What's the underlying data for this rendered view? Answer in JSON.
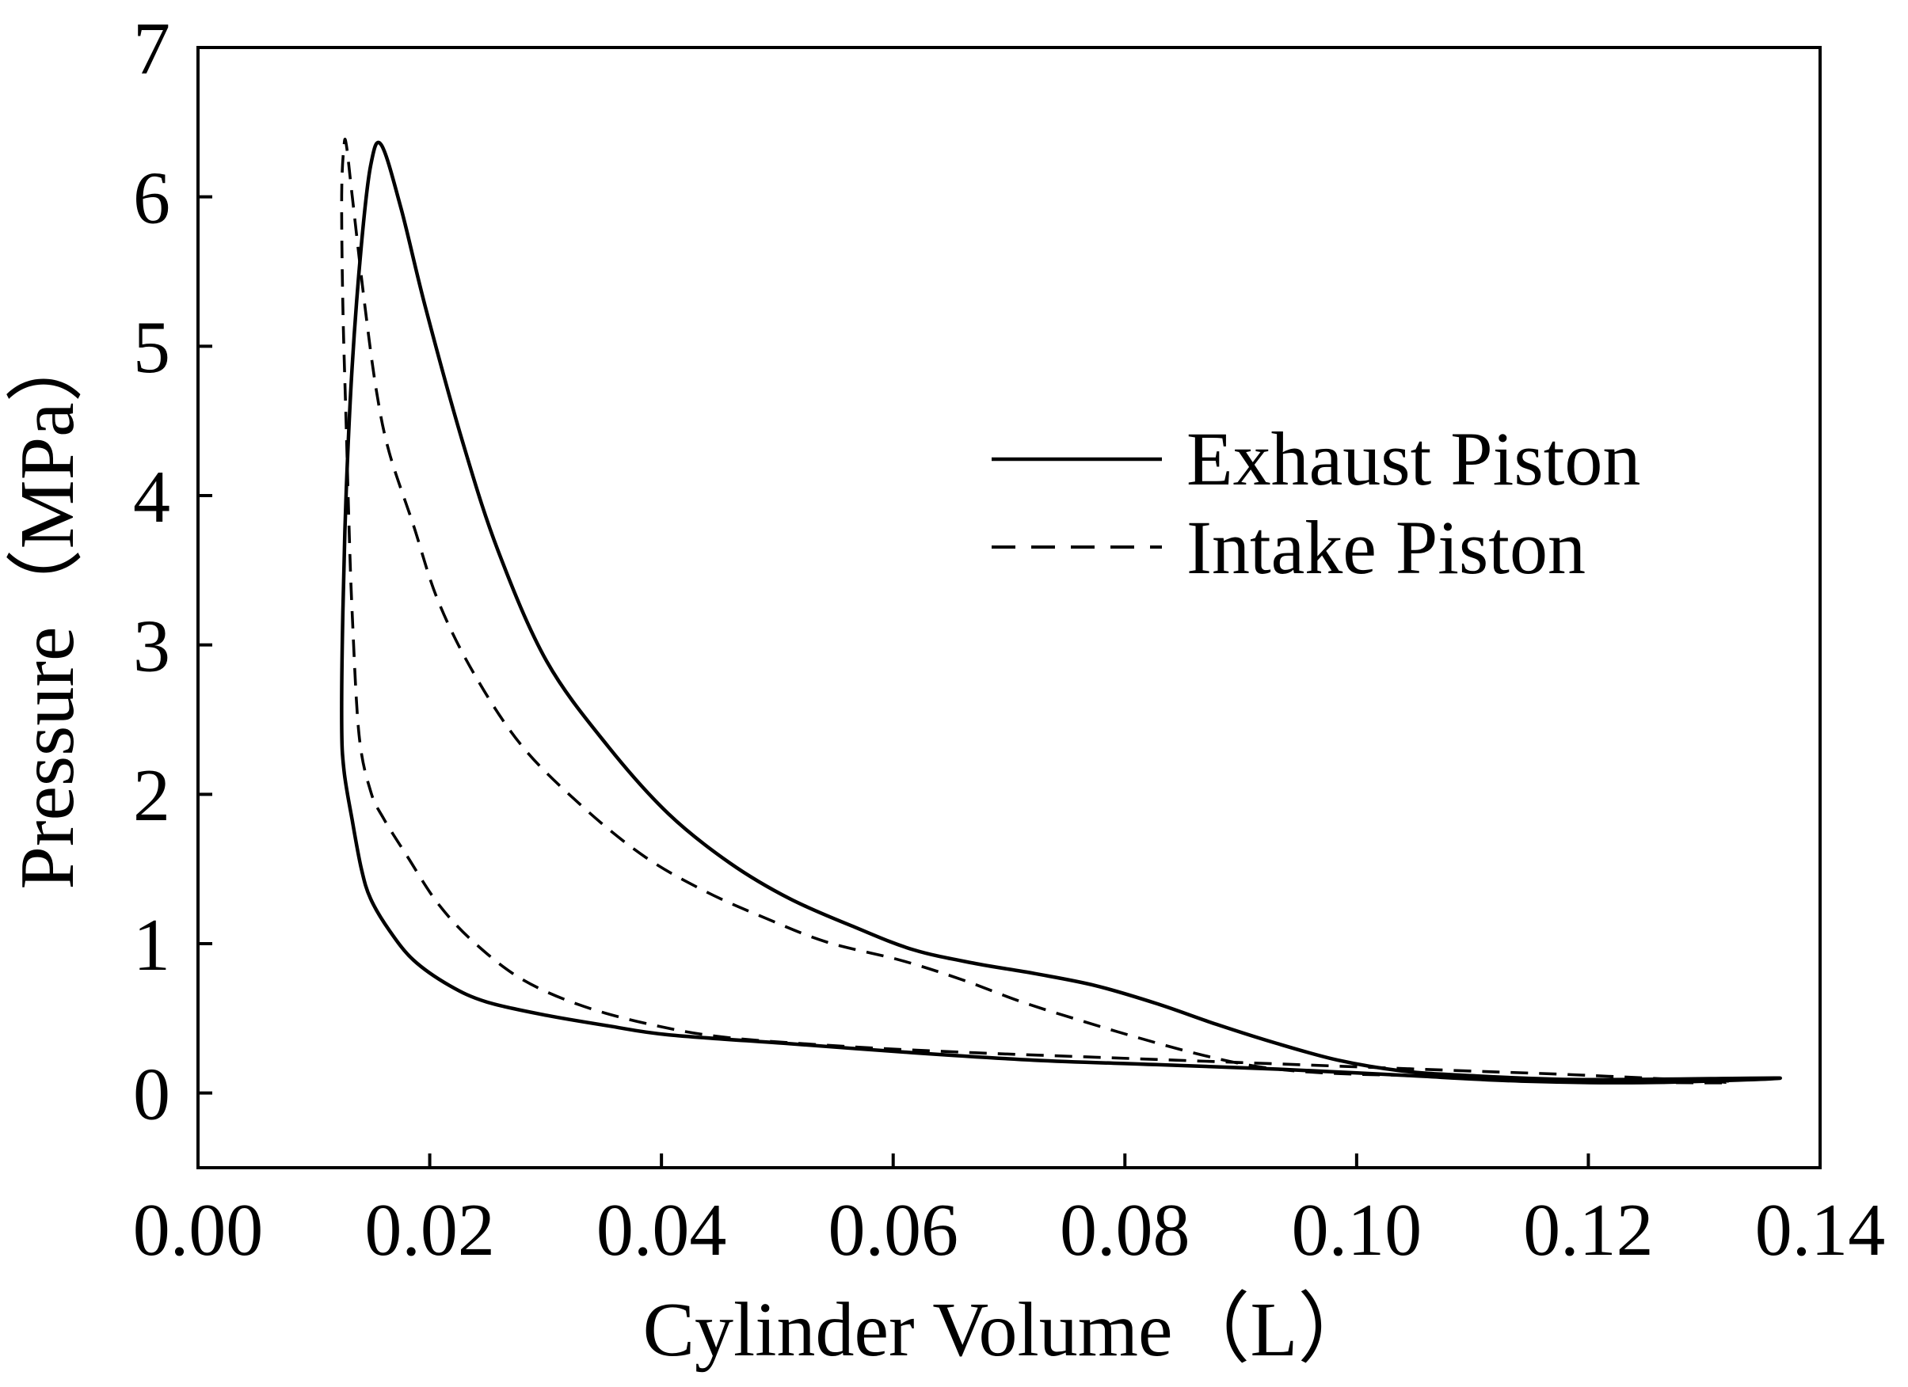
{
  "chart_data": {
    "type": "line",
    "xlabel": "Cylinder Volume（L）",
    "ylabel": "Pressure（MPa）",
    "xlim": [
      0,
      0.14
    ],
    "ylim": [
      -0.5,
      7
    ],
    "grid": false,
    "legend_position": "right",
    "x_ticks": [
      {
        "value": 0.0,
        "label": "0.00"
      },
      {
        "value": 0.02,
        "label": "0.02"
      },
      {
        "value": 0.04,
        "label": "0.04"
      },
      {
        "value": 0.06,
        "label": "0.06"
      },
      {
        "value": 0.08,
        "label": "0.08"
      },
      {
        "value": 0.1,
        "label": "0.10"
      },
      {
        "value": 0.12,
        "label": "0.12"
      },
      {
        "value": 0.14,
        "label": "0.14"
      }
    ],
    "y_ticks": [
      {
        "value": 0,
        "label": "0"
      },
      {
        "value": 1,
        "label": "1"
      },
      {
        "value": 2,
        "label": "2"
      },
      {
        "value": 3,
        "label": "3"
      },
      {
        "value": 4,
        "label": "4"
      },
      {
        "value": 5,
        "label": "5"
      },
      {
        "value": 6,
        "label": "6"
      },
      {
        "value": 7,
        "label": "7"
      }
    ],
    "series": [
      {
        "name": "Exhaust Piston",
        "line_style": "solid",
        "color": "#000000",
        "points": [
          [
            0.1365,
            0.1
          ],
          [
            0.1247,
            0.07
          ],
          [
            0.1142,
            0.08
          ],
          [
            0.1037,
            0.12
          ],
          [
            0.0932,
            0.16
          ],
          [
            0.0827,
            0.19
          ],
          [
            0.0722,
            0.22
          ],
          [
            0.0617,
            0.27
          ],
          [
            0.0511,
            0.33
          ],
          [
            0.0406,
            0.39
          ],
          [
            0.0354,
            0.45
          ],
          [
            0.0301,
            0.52
          ],
          [
            0.0249,
            0.61
          ],
          [
            0.0217,
            0.72
          ],
          [
            0.0186,
            0.89
          ],
          [
            0.0165,
            1.09
          ],
          [
            0.0149,
            1.3
          ],
          [
            0.0141,
            1.5
          ],
          [
            0.0133,
            1.83
          ],
          [
            0.0126,
            2.16
          ],
          [
            0.0124,
            2.48
          ],
          [
            0.0125,
            3.22
          ],
          [
            0.0128,
            4.04
          ],
          [
            0.0133,
            4.86
          ],
          [
            0.0141,
            5.68
          ],
          [
            0.0149,
            6.21
          ],
          [
            0.0158,
            6.35
          ],
          [
            0.0175,
            5.93
          ],
          [
            0.0196,
            5.27
          ],
          [
            0.0228,
            4.37
          ],
          [
            0.0259,
            3.63
          ],
          [
            0.0301,
            2.89
          ],
          [
            0.0354,
            2.32
          ],
          [
            0.0406,
            1.87
          ],
          [
            0.0459,
            1.54
          ],
          [
            0.0511,
            1.3
          ],
          [
            0.0567,
            1.11
          ],
          [
            0.0617,
            0.96
          ],
          [
            0.0669,
            0.87
          ],
          [
            0.0722,
            0.8
          ],
          [
            0.0774,
            0.72
          ],
          [
            0.0827,
            0.6
          ],
          [
            0.0879,
            0.46
          ],
          [
            0.0932,
            0.33
          ],
          [
            0.0984,
            0.22
          ],
          [
            0.1037,
            0.15
          ],
          [
            0.1089,
            0.12
          ],
          [
            0.1194,
            0.09
          ],
          [
            0.1365,
            0.1
          ]
        ]
      },
      {
        "name": "Intake Piston",
        "line_style": "dashed",
        "color": "#000000",
        "points": [
          [
            0.132,
            0.07
          ],
          [
            0.1194,
            0.12
          ],
          [
            0.1089,
            0.15
          ],
          [
            0.0984,
            0.18
          ],
          [
            0.0879,
            0.21
          ],
          [
            0.0774,
            0.24
          ],
          [
            0.0669,
            0.27
          ],
          [
            0.0564,
            0.31
          ],
          [
            0.0459,
            0.37
          ],
          [
            0.0396,
            0.45
          ],
          [
            0.0333,
            0.58
          ],
          [
            0.028,
            0.76
          ],
          [
            0.0238,
            1.01
          ],
          [
            0.0207,
            1.27
          ],
          [
            0.0181,
            1.58
          ],
          [
            0.016,
            1.84
          ],
          [
            0.0149,
            2.02
          ],
          [
            0.0139,
            2.4
          ],
          [
            0.0133,
            3.22
          ],
          [
            0.013,
            3.88
          ],
          [
            0.0128,
            4.45
          ],
          [
            0.0125,
            5.27
          ],
          [
            0.0124,
            6.01
          ],
          [
            0.0126,
            6.34
          ],
          [
            0.0128,
            6.35
          ],
          [
            0.0133,
            6.01
          ],
          [
            0.0144,
            5.27
          ],
          [
            0.0154,
            4.7
          ],
          [
            0.0165,
            4.29
          ],
          [
            0.0186,
            3.8
          ],
          [
            0.0207,
            3.3
          ],
          [
            0.0238,
            2.81
          ],
          [
            0.028,
            2.32
          ],
          [
            0.0333,
            1.91
          ],
          [
            0.0386,
            1.58
          ],
          [
            0.0438,
            1.35
          ],
          [
            0.049,
            1.17
          ],
          [
            0.0543,
            1.01
          ],
          [
            0.0606,
            0.89
          ],
          [
            0.0659,
            0.76
          ],
          [
            0.0711,
            0.61
          ],
          [
            0.0764,
            0.48
          ],
          [
            0.0816,
            0.36
          ],
          [
            0.0869,
            0.25
          ],
          [
            0.0921,
            0.17
          ],
          [
            0.0984,
            0.13
          ],
          [
            0.1089,
            0.11
          ],
          [
            0.1194,
            0.08
          ],
          [
            0.132,
            0.07
          ]
        ]
      }
    ]
  }
}
